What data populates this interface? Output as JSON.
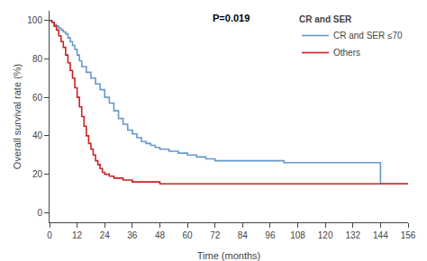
{
  "chart_data": {
    "type": "line",
    "xlabel": "Time (months)",
    "ylabel": "Overall survival rate (%)",
    "annotations": [
      "P=0.019"
    ],
    "legend_title": "CR and SER",
    "legend": "upper right",
    "grid": false,
    "xlim": [
      0,
      156
    ],
    "ylim": [
      -5,
      105
    ],
    "xticks": [
      0,
      12,
      24,
      36,
      48,
      60,
      72,
      84,
      96,
      108,
      120,
      132,
      144,
      156
    ],
    "yticks": [
      0,
      20,
      40,
      60,
      80,
      100
    ],
    "series": [
      {
        "name": "CR and SER ≤70",
        "color": "#6699cc",
        "line_style": "steps",
        "x": [
          0,
          1,
          1,
          2,
          2,
          3,
          3,
          4,
          4,
          5,
          5,
          6,
          6,
          7,
          7,
          8,
          8,
          9,
          9,
          10,
          10,
          11,
          11,
          12,
          12,
          13,
          13,
          14,
          14,
          16,
          16,
          18,
          18,
          20,
          20,
          22,
          22,
          24,
          24,
          26,
          26,
          28,
          28,
          30,
          30,
          32,
          32,
          34,
          34,
          36,
          36,
          38,
          38,
          40,
          40,
          42,
          42,
          44,
          44,
          46,
          46,
          48,
          48,
          52,
          52,
          56,
          56,
          60,
          60,
          64,
          64,
          68,
          68,
          72,
          72,
          78,
          78,
          84,
          84,
          90,
          90,
          96,
          96,
          102,
          102,
          108,
          108,
          144,
          144,
          156
        ],
        "values": [
          100,
          100,
          99,
          99,
          98,
          98,
          97,
          97,
          96,
          96,
          95,
          95,
          94,
          94,
          93,
          93,
          91,
          91,
          89,
          89,
          87,
          87,
          85,
          85,
          82,
          82,
          79,
          79,
          76,
          76,
          73,
          73,
          70,
          70,
          67,
          67,
          64,
          64,
          60,
          60,
          57,
          57,
          53,
          53,
          49,
          49,
          46,
          46,
          43,
          43,
          41,
          41,
          39,
          39,
          37,
          37,
          36,
          36,
          35,
          35,
          34,
          34,
          33,
          33,
          32,
          32,
          31,
          31,
          30,
          30,
          29,
          29,
          28,
          28,
          27,
          27,
          27,
          27,
          27,
          27,
          27,
          27,
          27,
          27,
          26,
          26,
          26,
          26,
          15,
          15
        ]
      },
      {
        "name": "Others",
        "color": "#cc2222",
        "line_style": "steps",
        "x": [
          0,
          1,
          1,
          2,
          2,
          3,
          3,
          4,
          4,
          5,
          5,
          6,
          6,
          7,
          7,
          8,
          8,
          9,
          9,
          10,
          10,
          11,
          11,
          12,
          12,
          13,
          13,
          14,
          14,
          15,
          15,
          16,
          16,
          17,
          17,
          18,
          18,
          19,
          19,
          20,
          20,
          21,
          21,
          22,
          22,
          23,
          23,
          24,
          24,
          26,
          26,
          28,
          28,
          30,
          30,
          32,
          32,
          34,
          34,
          36,
          36,
          40,
          40,
          44,
          44,
          48,
          48,
          54,
          54,
          60,
          60,
          72,
          72,
          144,
          144,
          156
        ],
        "values": [
          100,
          100,
          99,
          99,
          97,
          97,
          95,
          95,
          92,
          92,
          89,
          89,
          86,
          86,
          82,
          82,
          78,
          78,
          74,
          74,
          70,
          70,
          65,
          65,
          60,
          60,
          55,
          55,
          50,
          50,
          45,
          45,
          40,
          40,
          36,
          36,
          33,
          33,
          30,
          30,
          27,
          27,
          25,
          25,
          23,
          23,
          21,
          21,
          20,
          20,
          19,
          19,
          18,
          18,
          18,
          18,
          17,
          17,
          17,
          17,
          16,
          16,
          16,
          16,
          16,
          16,
          15,
          15,
          15,
          15,
          15,
          15,
          15,
          15,
          15,
          15
        ]
      }
    ]
  }
}
